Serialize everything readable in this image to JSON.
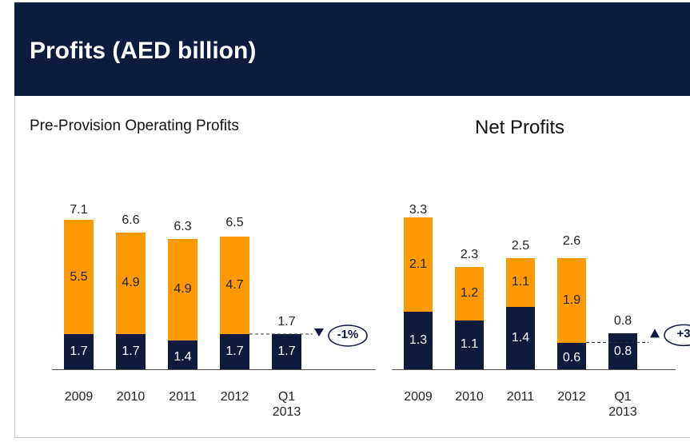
{
  "header": {
    "title": "Profits (AED billion)"
  },
  "chart_data": [
    {
      "type": "stacked-bar",
      "title": "Pre-Provision Operating Profits",
      "categories": [
        "2009",
        "2010",
        "2011",
        "2012",
        "Q1\n2013"
      ],
      "series": [
        {
          "color": "#0f1a3c",
          "values": [
            1.7,
            1.7,
            1.4,
            1.7,
            1.7
          ]
        },
        {
          "color": "#ff9900",
          "values": [
            5.5,
            4.9,
            4.9,
            4.7,
            null
          ]
        }
      ],
      "totals": [
        7.1,
        6.6,
        6.3,
        6.5,
        1.7
      ],
      "annotation": {
        "text": "-1%",
        "direction": "down"
      }
    },
    {
      "type": "stacked-bar",
      "title": "Net Profits",
      "categories": [
        "2009",
        "2010",
        "2011",
        "2012",
        "Q1\n2013"
      ],
      "series": [
        {
          "color": "#0f1a3c",
          "values": [
            1.3,
            1.1,
            1.4,
            0.6,
            0.8
          ]
        },
        {
          "color": "#ff9900",
          "values": [
            2.1,
            1.2,
            1.1,
            1.9,
            null
          ]
        }
      ],
      "totals": [
        3.3,
        2.3,
        2.5,
        2.6,
        0.8
      ],
      "annotation": {
        "text": "+3",
        "direction": "up"
      }
    }
  ]
}
